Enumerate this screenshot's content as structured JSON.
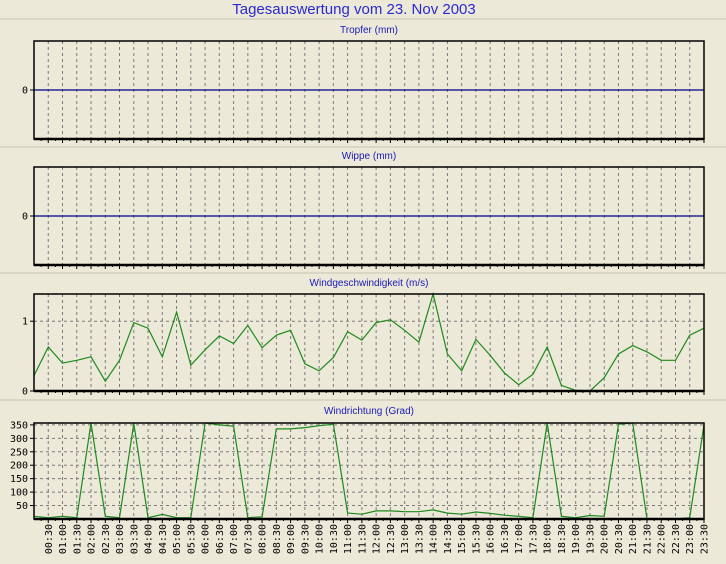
{
  "title": "Tagesauswertung vom 23. Nov 2003",
  "colors": {
    "background": "#ece9d8",
    "title": "#2a2ad0",
    "zero_line": "#00008b",
    "series": "#1e8a1e",
    "grid": "#7a7a7a"
  },
  "time_labels": [
    "00:30",
    "01:00",
    "01:30",
    "02:00",
    "02:30",
    "03:00",
    "03:30",
    "04:00",
    "04:30",
    "05:00",
    "05:30",
    "06:00",
    "06:30",
    "07:00",
    "07:30",
    "08:00",
    "08:30",
    "09:00",
    "09:30",
    "10:00",
    "10:30",
    "11:00",
    "11:30",
    "12:00",
    "12:30",
    "13:00",
    "13:30",
    "14:00",
    "14:30",
    "15:00",
    "15:30",
    "16:00",
    "16:30",
    "17:00",
    "17:30",
    "18:00",
    "18:30",
    "19:00",
    "19:30",
    "20:00",
    "20:30",
    "21:00",
    "21:30",
    "22:00",
    "22:30",
    "23:00",
    "23:30"
  ],
  "chart_data": [
    {
      "type": "line",
      "title": "Tropfer (mm)",
      "ylim": [
        -1,
        1
      ],
      "yticks": [
        "0"
      ],
      "ytick_values": [
        0
      ],
      "grid": "vertical dashed",
      "x_range": [
        "00:00",
        "23:30"
      ],
      "values": "constant 0",
      "series_color": "#00008b"
    },
    {
      "type": "line",
      "title": "Wippe (mm)",
      "ylim": [
        -1,
        1
      ],
      "yticks": [
        "0"
      ],
      "ytick_values": [
        0
      ],
      "grid": "vertical dashed",
      "x_range": [
        "00:00",
        "23:30"
      ],
      "values": "constant 0",
      "series_color": "#00008b"
    },
    {
      "type": "line",
      "title": "Windgeschwindigkeit (m/s)",
      "ylim": [
        0,
        1.39
      ],
      "yticks": [
        "0",
        "1"
      ],
      "ytick_values": [
        0,
        1
      ],
      "grid": "dashed",
      "x_range": [
        "00:00",
        "23:30"
      ],
      "series_color": "#1e8a1e",
      "values": [
        0.22,
        0.63,
        0.4,
        0.44,
        0.49,
        0.14,
        0.44,
        0.98,
        0.9,
        0.49,
        1.13,
        0.37,
        0.59,
        0.79,
        0.68,
        0.94,
        0.62,
        0.8,
        0.87,
        0.39,
        0.29,
        0.48,
        0.85,
        0.73,
        0.98,
        1.02,
        0.87,
        0.7,
        1.39,
        0.53,
        0.29,
        0.74,
        0.51,
        0.26,
        0.09,
        0.24,
        0.63,
        0.08,
        0.01,
        0.0,
        0.19,
        0.53,
        0.65,
        0.56,
        0.44,
        0.44,
        0.8,
        0.9
      ]
    },
    {
      "type": "line",
      "title": "Windrichtung (Grad)",
      "ylim": [
        0,
        357
      ],
      "yticks": [
        "50",
        "100",
        "150",
        "200",
        "250",
        "300",
        "350"
      ],
      "ytick_values": [
        50,
        100,
        150,
        200,
        250,
        300,
        350
      ],
      "grid": "dashed",
      "x_range": [
        "00:00",
        "23:30"
      ],
      "series_color": "#1e8a1e",
      "values": [
        10,
        5,
        10,
        5,
        357,
        10,
        5,
        355,
        5,
        17,
        5,
        5,
        357,
        350,
        345,
        5,
        8,
        335,
        335,
        340,
        347,
        352,
        22,
        18,
        30,
        30,
        27,
        27,
        34,
        22,
        18,
        26,
        21,
        14,
        10,
        5,
        357,
        10,
        5,
        13,
        10,
        352,
        357,
        0,
        0,
        0,
        5,
        350
      ]
    }
  ]
}
